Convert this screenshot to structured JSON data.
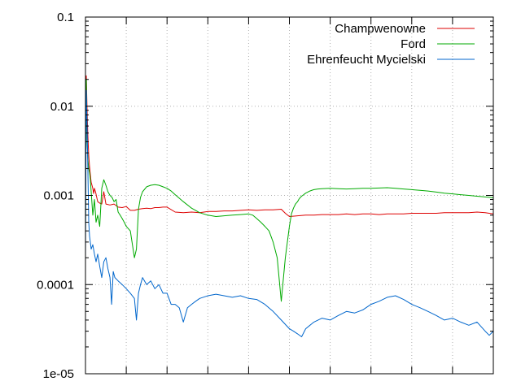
{
  "chart_data": {
    "type": "line",
    "title": "",
    "xlabel": "",
    "ylabel": "",
    "yscale": "log",
    "ylim": [
      1e-05,
      0.1
    ],
    "xlim": [
      0,
      1000
    ],
    "y_tick_labels": [
      "1e-05",
      "0.0001",
      "0.001",
      "0.01",
      "0.1"
    ],
    "y_tick_values": [
      1e-05,
      0.0001,
      0.001,
      0.01,
      0.1
    ],
    "x_grid_values": [
      100,
      200,
      300,
      400,
      500,
      600,
      700,
      800,
      900
    ],
    "grid": true,
    "legend_position": "top-right",
    "series": [
      {
        "name": "Champwenowne",
        "color": "#dd0000",
        "x": [
          0,
          2,
          4,
          6,
          8,
          10,
          12,
          14,
          16,
          18,
          20,
          22,
          25,
          30,
          35,
          40,
          45,
          50,
          60,
          70,
          80,
          90,
          100,
          110,
          120,
          130,
          140,
          150,
          160,
          170,
          180,
          190,
          200,
          220,
          240,
          260,
          280,
          300,
          320,
          340,
          360,
          380,
          400,
          420,
          440,
          460,
          480,
          490,
          500,
          520,
          540,
          560,
          580,
          600,
          620,
          640,
          660,
          680,
          700,
          720,
          740,
          760,
          780,
          800,
          820,
          840,
          860,
          880,
          900,
          920,
          940,
          960,
          980,
          1000
        ],
        "y": [
          0.0007,
          0.022,
          0.009,
          0.0045,
          0.0028,
          0.0021,
          0.0017,
          0.0014,
          0.0013,
          0.0012,
          0.00105,
          0.0012,
          0.00108,
          0.00085,
          0.00082,
          0.0008,
          0.0011,
          0.0008,
          0.00078,
          0.0008,
          0.00074,
          0.00073,
          0.00075,
          0.00068,
          0.00068,
          0.0007,
          0.00071,
          0.00072,
          0.00071,
          0.00073,
          0.00073,
          0.00074,
          0.00074,
          0.00065,
          0.00064,
          0.00065,
          0.00064,
          0.00066,
          0.00066,
          0.00067,
          0.00067,
          0.00068,
          0.00069,
          0.00068,
          0.00069,
          0.00069,
          0.0007,
          0.00063,
          0.00058,
          0.00059,
          0.0006,
          0.0006,
          0.00061,
          0.00061,
          0.00061,
          0.00062,
          0.00061,
          0.00062,
          0.00062,
          0.00061,
          0.00062,
          0.00062,
          0.00062,
          0.00063,
          0.00063,
          0.00063,
          0.00063,
          0.00064,
          0.00064,
          0.00064,
          0.00064,
          0.00065,
          0.00064,
          0.00062
        ]
      },
      {
        "name": "Ford",
        "color": "#00aa00",
        "x": [
          0,
          2,
          4,
          6,
          8,
          10,
          12,
          14,
          18,
          22,
          26,
          30,
          35,
          40,
          45,
          50,
          55,
          60,
          65,
          70,
          75,
          80,
          85,
          90,
          95,
          100,
          110,
          120,
          125,
          130,
          135,
          140,
          150,
          160,
          170,
          180,
          190,
          200,
          210,
          220,
          240,
          260,
          280,
          300,
          320,
          340,
          360,
          380,
          400,
          410,
          420,
          430,
          440,
          450,
          460,
          470,
          480,
          490,
          500,
          505,
          510,
          515,
          520,
          523,
          526,
          530,
          535,
          540,
          545,
          550,
          560,
          570,
          580,
          600,
          620,
          640,
          660,
          680,
          700,
          720,
          740,
          760,
          780,
          800,
          820,
          840,
          860,
          880,
          900,
          920,
          940,
          960,
          980,
          1000
        ],
        "y": [
          0.0004,
          0.02,
          0.004,
          0.0025,
          0.002,
          0.0018,
          0.0015,
          0.0011,
          0.0006,
          0.0009,
          0.0005,
          0.0006,
          0.00045,
          0.0012,
          0.0015,
          0.0013,
          0.0011,
          0.001,
          0.00095,
          0.00085,
          0.0009,
          0.00065,
          0.0006,
          0.00055,
          0.0005,
          0.00045,
          0.0004,
          0.0002,
          0.00025,
          0.0007,
          0.00095,
          0.0011,
          0.00125,
          0.0013,
          0.00132,
          0.0013,
          0.00125,
          0.0012,
          0.00112,
          0.00102,
          0.00085,
          0.00072,
          0.00064,
          0.0006,
          0.00058,
          0.00059,
          0.0006,
          0.00061,
          0.00062,
          0.0006,
          0.00055,
          0.0005,
          0.00045,
          0.0004,
          0.0003,
          0.0002,
          6.5e-05,
          0.0002,
          0.00045,
          0.00062,
          0.00072,
          0.0008,
          0.00085,
          0.0009,
          0.00094,
          0.00098,
          0.00102,
          0.00106,
          0.00109,
          0.00112,
          0.00116,
          0.00118,
          0.00119,
          0.0012,
          0.00119,
          0.00118,
          0.00119,
          0.0012,
          0.0012,
          0.00121,
          0.00122,
          0.0012,
          0.00118,
          0.00116,
          0.00114,
          0.00112,
          0.00109,
          0.00106,
          0.00104,
          0.00102,
          0.001,
          0.00098,
          0.00096,
          0.00094
        ]
      },
      {
        "name": "Ehrenfeucht Mycielski",
        "color": "#0066cc",
        "x": [
          0,
          2,
          4,
          6,
          8,
          10,
          14,
          18,
          22,
          26,
          30,
          35,
          40,
          45,
          50,
          55,
          60,
          64,
          68,
          72,
          80,
          90,
          100,
          110,
          120,
          125,
          130,
          135,
          140,
          150,
          160,
          170,
          180,
          190,
          200,
          210,
          220,
          230,
          240,
          250,
          260,
          270,
          280,
          300,
          320,
          340,
          360,
          380,
          400,
          420,
          440,
          460,
          480,
          500,
          510,
          520,
          530,
          540,
          560,
          580,
          600,
          620,
          640,
          660,
          680,
          700,
          720,
          740,
          760,
          780,
          800,
          820,
          840,
          860,
          880,
          900,
          920,
          940,
          960,
          980,
          990,
          1000
        ],
        "y": [
          0.0002,
          0.015,
          0.006,
          0.0018,
          0.0005,
          0.00035,
          0.00025,
          0.00028,
          0.00022,
          0.00018,
          0.00022,
          0.00016,
          0.00012,
          0.00018,
          0.0002,
          0.00015,
          0.00012,
          6e-05,
          0.00014,
          0.00012,
          0.00011,
          0.0001,
          9e-05,
          8e-05,
          7e-05,
          4e-05,
          8e-05,
          0.0001,
          0.00012,
          0.0001,
          0.00011,
          9e-05,
          0.0001,
          8e-05,
          8e-05,
          6e-05,
          6e-05,
          5.5e-05,
          3.8e-05,
          5.5e-05,
          6e-05,
          6.5e-05,
          7e-05,
          7.5e-05,
          7.8e-05,
          7.5e-05,
          7.2e-05,
          7.5e-05,
          7e-05,
          6.8e-05,
          6e-05,
          5e-05,
          4e-05,
          3.2e-05,
          3e-05,
          2.8e-05,
          2.6e-05,
          3.2e-05,
          3.8e-05,
          4.2e-05,
          4e-05,
          4.5e-05,
          5e-05,
          4.8e-05,
          5.2e-05,
          6e-05,
          6.5e-05,
          7.2e-05,
          7.5e-05,
          6.8e-05,
          6e-05,
          5.5e-05,
          5e-05,
          4.5e-05,
          4e-05,
          4.2e-05,
          3.8e-05,
          3.5e-05,
          3.8e-05,
          3e-05,
          2.7e-05,
          3e-05
        ]
      }
    ]
  }
}
